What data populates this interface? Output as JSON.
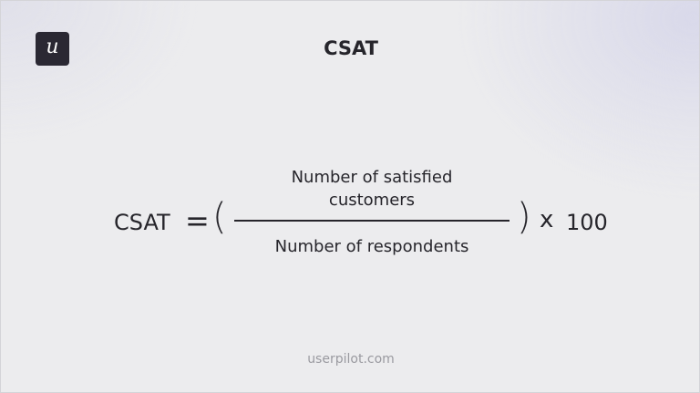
{
  "logo": {
    "letter": "u"
  },
  "title": "CSAT",
  "formula": {
    "lhs": "CSAT",
    "equals": "=",
    "open_paren": "(",
    "numerator": "Number of satisfied customers",
    "denominator": "Number of respondents",
    "close_paren": ")",
    "multiply": "x",
    "factor": "100"
  },
  "footer": "userpilot.com"
}
